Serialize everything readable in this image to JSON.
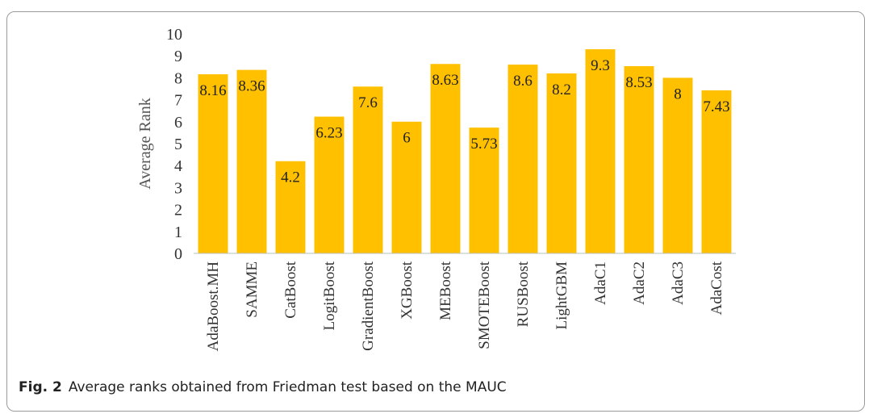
{
  "caption": {
    "figure_label": "Fig. 2",
    "text": "Average ranks obtained from Friedman test based on the MAUC"
  },
  "chart_data": {
    "type": "bar",
    "categories": [
      "AdaBoost.MH",
      "SAMME",
      "CatBoost",
      "LogitBoost",
      "GradientBoost",
      "XGBoost",
      "MEBoost",
      "SMOTEBoost",
      "RUSBoost",
      "LightGBM",
      "AdaC1",
      "AdaC2",
      "AdaC3",
      "AdaCost"
    ],
    "values": [
      8.16,
      8.36,
      4.2,
      6.23,
      7.6,
      6,
      8.63,
      5.73,
      8.6,
      8.2,
      9.3,
      8.53,
      8,
      7.43
    ],
    "data_labels": [
      "8.16",
      "8.36",
      "4.2",
      "6.23",
      "7.6",
      "6",
      "8.63",
      "5.73",
      "8.6",
      "8.2",
      "9.3",
      "8.53",
      "8",
      "7.43"
    ],
    "ylabel": "Average Rank",
    "ylim": [
      0,
      10
    ],
    "yticks": [
      0,
      1,
      2,
      3,
      4,
      5,
      6,
      7,
      8,
      9,
      10
    ],
    "grid": false,
    "legend": "none",
    "bar_color": "#FFC000"
  }
}
